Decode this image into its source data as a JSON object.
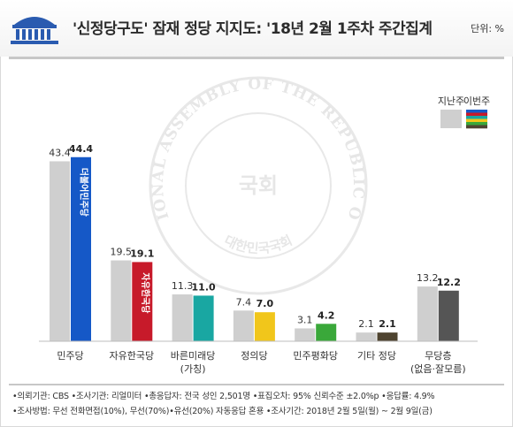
{
  "header": {
    "title": "'신정당구도' 잠재 정당 지지도: '18년 2월 1주차 주간집계",
    "unit": "단위: %"
  },
  "chart_data": {
    "type": "bar",
    "categories": [
      "민주당",
      "자유한국당",
      "바른미래당\n(가칭)",
      "정의당",
      "민주평화당",
      "기타 정당",
      "무당층\n(없음·잘모름)"
    ],
    "series": [
      {
        "name": "지난주",
        "values": [
          43.4,
          19.5,
          11.3,
          7.4,
          3.1,
          2.1,
          13.2
        ],
        "color": "#cfcfcf"
      },
      {
        "name": "이번주",
        "values": [
          44.4,
          19.1,
          11.0,
          7.0,
          4.2,
          2.1,
          12.2
        ],
        "colors": [
          "#1558c7",
          "#c71a2a",
          "#19a7a2",
          "#f1c61b",
          "#3aa83a",
          "#4f4430",
          "#555555"
        ]
      }
    ],
    "value_labels_last": [
      "43.4",
      "19.5",
      "11.3",
      "7.4",
      "3.1",
      "2.1",
      "13.2"
    ],
    "value_labels_this": [
      "44.4",
      "19.1",
      "11.0",
      "7.0",
      "4.2",
      "2.1",
      "12.2"
    ],
    "ylim": [
      0,
      50
    ],
    "grid": false,
    "legend_position": "top-right",
    "legend_stripe_colors": [
      "#1558c7",
      "#c71a2a",
      "#19a7a2",
      "#f1c61b",
      "#3aa83a",
      "#4f4430"
    ],
    "bar_logos": [
      "더불어민주당",
      "자유한국당",
      "",
      "",
      "",
      "",
      ""
    ]
  },
  "watermark": {
    "outer_text": "THE NATIONAL ASSEMBLY OF THE REPUBLIC OF KOREA",
    "inner_text": "대한민국국회",
    "center_text": "국회"
  },
  "footer": {
    "line1": "•의뢰기관: CBS  •조사기관: 리얼미터  •총응답자: 전국 성인 2,501명  •표집오차: 95% 신뢰수준 ±2.0%p  •응답률: 4.9%",
    "line2": "•조사방법: 무선 전화면접(10%), 무선(70%)•유선(20%) 자동응답 혼용  •조사기간: 2018년 2월 5일(월) ~ 2월 9일(금)"
  }
}
